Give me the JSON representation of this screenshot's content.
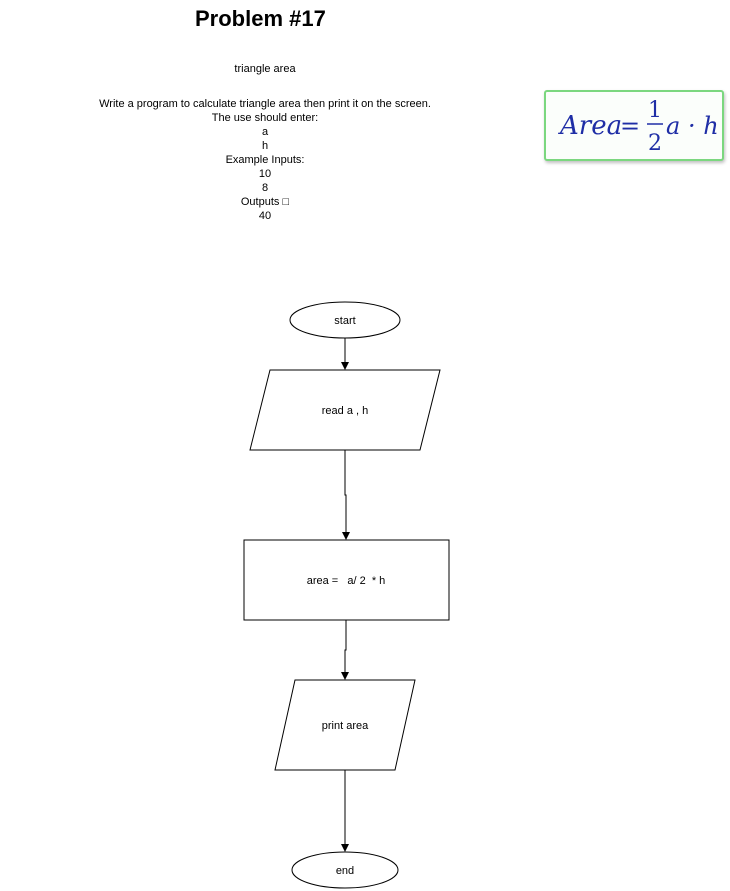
{
  "header": {
    "title": "Problem #17",
    "subtitle": "triangle area"
  },
  "description": {
    "lines": [
      "Write a program to calculate triangle area then print it on the screen.",
      "The use should enter:",
      "a",
      "h",
      "Example Inputs:",
      "10",
      "8",
      "Outputs □",
      "40"
    ]
  },
  "formula": {
    "lhs": "Area",
    "equals": "=",
    "numerator": "1",
    "denominator": "2",
    "rhs": "a · h",
    "color": "#1f2ea6",
    "border_color": "#7bd77f"
  },
  "flowchart": {
    "start": "start",
    "input": "read a , h",
    "process": "area =   a/ 2  * h",
    "output": "print area",
    "end": "end"
  }
}
